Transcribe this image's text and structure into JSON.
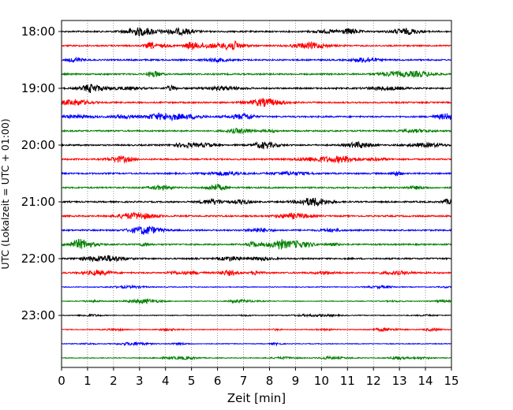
{
  "chart_data": {
    "type": "line",
    "chart_kind": "helicorder",
    "title": "",
    "xlabel": "Zeit  [min]",
    "ylabel": "UTC (Lokalzeit = UTC + 01:00)",
    "xlim": [
      0,
      15
    ],
    "x_ticks": [
      "0",
      "1",
      "2",
      "3",
      "4",
      "5",
      "6",
      "7",
      "8",
      "9",
      "10",
      "11",
      "12",
      "13",
      "14",
      "15"
    ],
    "y_ticks": [
      "18:00",
      "19:00",
      "20:00",
      "21:00",
      "22:00",
      "23:00"
    ],
    "trace_start_time": "18:00",
    "trace_interval_minutes": 15,
    "trace_count": 24,
    "trace_colors": [
      "#000000",
      "#ff0000",
      "#0000ff",
      "#008000"
    ],
    "grid": "vertical dotted lines at each minute",
    "legend": "none"
  }
}
